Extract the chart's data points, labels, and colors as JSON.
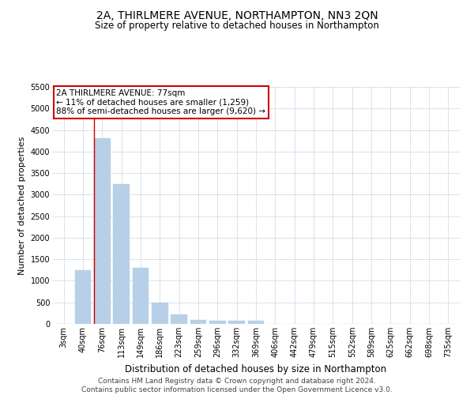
{
  "title": "2A, THIRLMERE AVENUE, NORTHAMPTON, NN3 2QN",
  "subtitle": "Size of property relative to detached houses in Northampton",
  "xlabel": "Distribution of detached houses by size in Northampton",
  "ylabel": "Number of detached properties",
  "categories": [
    "3sqm",
    "40sqm",
    "76sqm",
    "113sqm",
    "149sqm",
    "186sqm",
    "223sqm",
    "259sqm",
    "296sqm",
    "332sqm",
    "369sqm",
    "406sqm",
    "442sqm",
    "479sqm",
    "515sqm",
    "552sqm",
    "589sqm",
    "625sqm",
    "662sqm",
    "698sqm",
    "735sqm"
  ],
  "values": [
    0,
    1250,
    4300,
    3250,
    1300,
    500,
    225,
    100,
    75,
    75,
    75,
    0,
    0,
    0,
    0,
    0,
    0,
    0,
    0,
    0,
    0
  ],
  "bar_color": "#b8cfe8",
  "bar_edge_color": "#b8cfe8",
  "vline_color": "#cc0000",
  "vline_x_index": 1.575,
  "ylim": [
    0,
    5500
  ],
  "yticks": [
    0,
    500,
    1000,
    1500,
    2000,
    2500,
    3000,
    3500,
    4000,
    4500,
    5000,
    5500
  ],
  "annotation_line1": "2A THIRLMERE AVENUE: 77sqm",
  "annotation_line2": "← 11% of detached houses are smaller (1,259)",
  "annotation_line3": "88% of semi-detached houses are larger (9,620) →",
  "annotation_box_color": "#ffffff",
  "annotation_box_edge": "#cc0000",
  "footer1": "Contains HM Land Registry data © Crown copyright and database right 2024.",
  "footer2": "Contains public sector information licensed under the Open Government Licence v3.0.",
  "bg_color": "#ffffff",
  "grid_color": "#ccd6e8",
  "title_fontsize": 10,
  "subtitle_fontsize": 8.5,
  "tick_fontsize": 7,
  "ylabel_fontsize": 8,
  "xlabel_fontsize": 8.5,
  "footer_fontsize": 6.5
}
